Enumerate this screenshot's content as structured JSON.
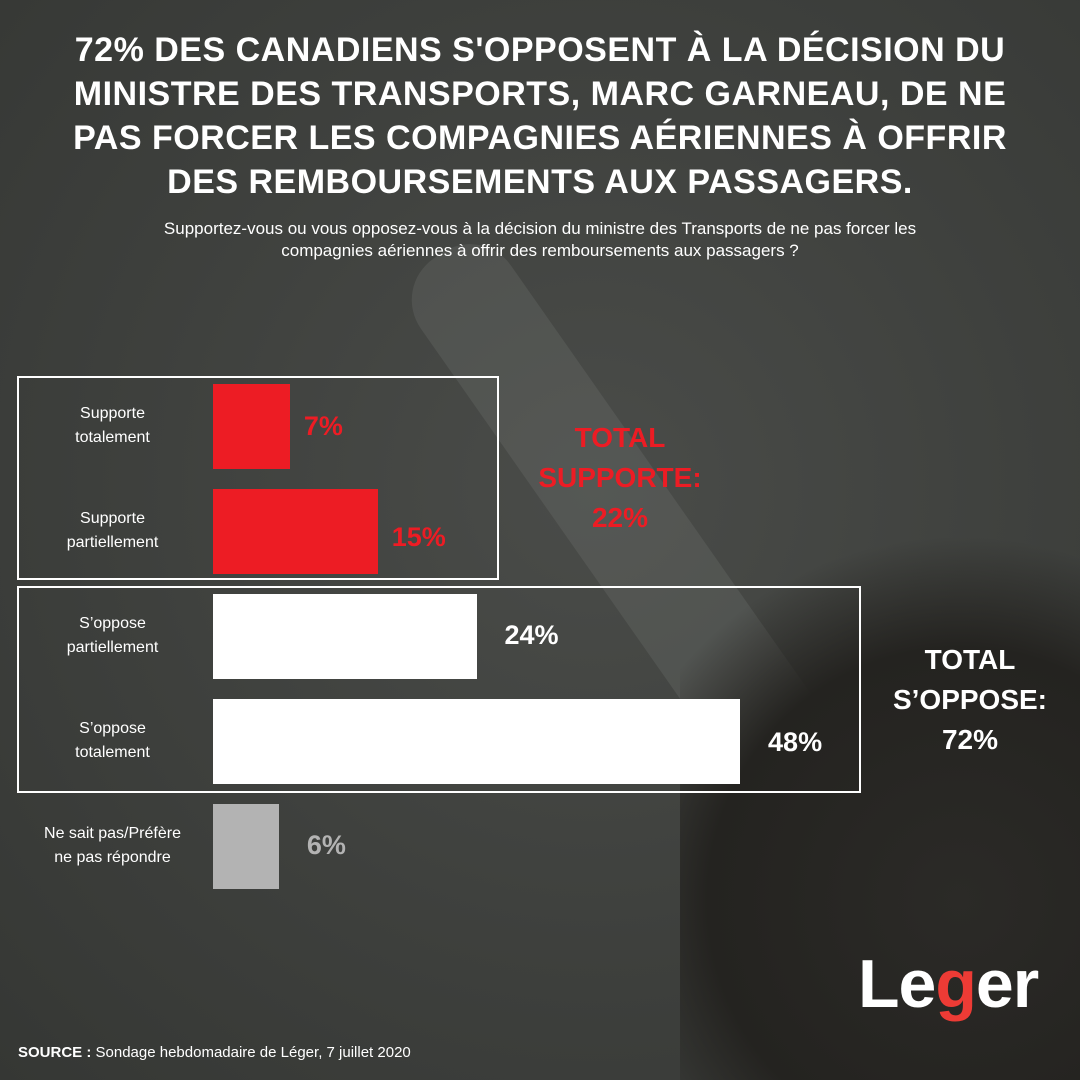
{
  "title": "72% des Canadiens s'opposent à la décision du ministre des Transports, Marc Garneau, de ne pas forcer les compagnies aériennes à offrir des remboursements aux passagers.",
  "subtitle_line1": "Supportez-vous ou vous opposez-vous à la décision du ministre des Transports de ne pas forcer les",
  "subtitle_line2": "compagnies aériennes à offrir des remboursements aux passagers ?",
  "colors": {
    "support": "#ed1c24",
    "oppose": "#ffffff",
    "unknown": "#b3b3b3",
    "background": "#3e403d"
  },
  "chart_data": {
    "type": "bar",
    "orientation": "horizontal",
    "categories": [
      "Supporte totalement",
      "Supporte partiellement",
      "S’oppose partiellement",
      "S’oppose totalement",
      "Ne sait pas/Préfère ne pas répondre"
    ],
    "label_lines": [
      [
        "Supporte",
        "totalement"
      ],
      [
        "Supporte",
        "partiellement"
      ],
      [
        "S’oppose",
        "partiellement"
      ],
      [
        "S’oppose",
        "totalement"
      ],
      [
        "Ne sait pas/Préfère",
        "ne pas répondre"
      ]
    ],
    "values": [
      7,
      15,
      24,
      48,
      6
    ],
    "value_labels": [
      "7%",
      "15%",
      "24%",
      "48%",
      "6%"
    ],
    "unit": "%",
    "groups": [
      {
        "label_lines": [
          "TOTAL",
          "SUPPORTE:",
          "22%"
        ],
        "value": 22
      },
      {
        "label_lines": [
          "TOTAL",
          "S’OPPOSE:",
          "72%"
        ],
        "value": 72
      }
    ]
  },
  "logo": {
    "text": "Léger",
    "part1": "Le",
    "part2": "g",
    "part3": "er"
  },
  "source": {
    "label": "SOURCE :",
    "text": " Sondage hebdomadaire de Léger, 7 juillet 2020"
  }
}
